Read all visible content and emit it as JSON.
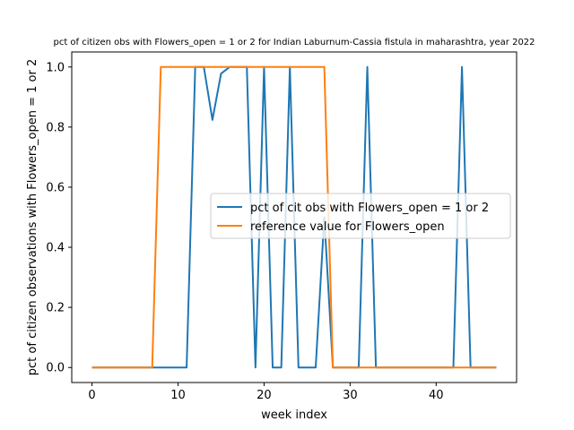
{
  "chart_data": {
    "type": "line",
    "title": "pct of citizen obs with Flowers_open = 1 or 2 for Indian Laburnum-Cassia fistula in maharashtra, year 2022",
    "xlabel": "week index",
    "ylabel": "pct of citizen observations with Flowers_open = 1 or 2",
    "xlim": [
      -2.35,
      49.35
    ],
    "ylim": [
      -0.05,
      1.05
    ],
    "xticks": [
      0,
      10,
      20,
      30,
      40
    ],
    "xtick_labels": [
      "0",
      "10",
      "20",
      "30",
      "40"
    ],
    "yticks": [
      0.0,
      0.2,
      0.4,
      0.6,
      0.8,
      1.0
    ],
    "ytick_labels": [
      "0.0",
      "0.2",
      "0.4",
      "0.6",
      "0.8",
      "1.0"
    ],
    "grid": false,
    "legend_position": "center-right",
    "x": [
      0,
      1,
      2,
      3,
      4,
      5,
      6,
      7,
      8,
      9,
      10,
      11,
      12,
      13,
      14,
      15,
      16,
      17,
      18,
      19,
      20,
      21,
      22,
      23,
      24,
      25,
      26,
      27,
      28,
      29,
      30,
      31,
      32,
      33,
      34,
      35,
      36,
      37,
      38,
      39,
      40,
      41,
      42,
      43,
      44,
      45,
      46,
      47
    ],
    "series": [
      {
        "name": "pct of cit obs with Flowers_open = 1 or 2",
        "color": "#1f77b4",
        "values": [
          0,
          0,
          0,
          0,
          0,
          0,
          0,
          0,
          0,
          0,
          0,
          0,
          1,
          1,
          0.824,
          0.978,
          1,
          1,
          1,
          0,
          1,
          0,
          0,
          1,
          0,
          0,
          0,
          0.5,
          0,
          0,
          0,
          0,
          1,
          0,
          0,
          0,
          0,
          0,
          0,
          0,
          0,
          0,
          0,
          1,
          0,
          0,
          0,
          0
        ]
      },
      {
        "name": "reference value for Flowers_open",
        "color": "#ff7f0e",
        "values": [
          0,
          0,
          0,
          0,
          0,
          0,
          0,
          0,
          1,
          1,
          1,
          1,
          1,
          1,
          1,
          1,
          1,
          1,
          1,
          1,
          1,
          1,
          1,
          1,
          1,
          1,
          1,
          1,
          0,
          0,
          0,
          0,
          0,
          0,
          0,
          0,
          0,
          0,
          0,
          0,
          0,
          0,
          0,
          0,
          0,
          0,
          0,
          0
        ]
      }
    ]
  }
}
